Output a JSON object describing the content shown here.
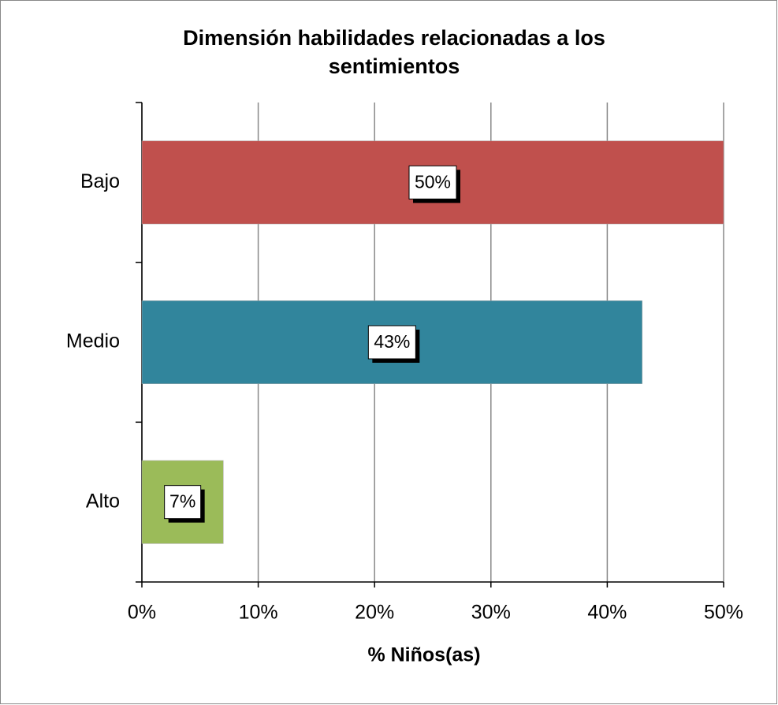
{
  "chart_data": {
    "type": "bar",
    "orientation": "horizontal",
    "title": "Dimensión habilidades relacionadas a los sentimientos",
    "xlabel": "% Niños(as)",
    "categories": [
      "Bajo",
      "Medio",
      "Alto"
    ],
    "values": [
      50,
      43,
      7
    ],
    "value_labels": [
      "50%",
      "43%",
      "7%"
    ],
    "colors": [
      "#c0504d",
      "#31859c",
      "#9bbb59"
    ],
    "xlim": [
      0,
      50
    ],
    "xticks": [
      {
        "value": 0,
        "label": "0%"
      },
      {
        "value": 10,
        "label": "10%"
      },
      {
        "value": 20,
        "label": "20%"
      },
      {
        "value": 30,
        "label": "30%"
      },
      {
        "value": 40,
        "label": "40%"
      },
      {
        "value": 50,
        "label": "50%"
      }
    ],
    "grid": true
  }
}
